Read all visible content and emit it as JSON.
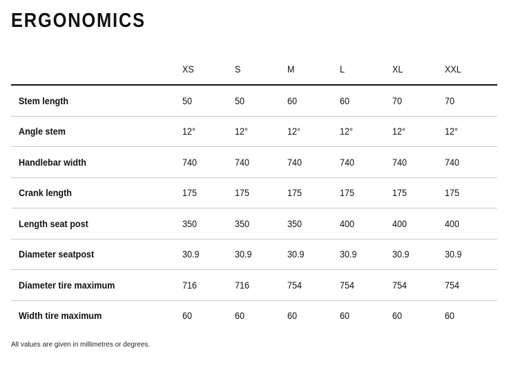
{
  "title": "ERGONOMICS",
  "table": {
    "columns": [
      "XS",
      "S",
      "M",
      "L",
      "XL",
      "XXL"
    ],
    "rows": [
      {
        "label": "Stem length",
        "values": [
          "50",
          "50",
          "60",
          "60",
          "70",
          "70"
        ]
      },
      {
        "label": "Angle stem",
        "values": [
          "12°",
          "12°",
          "12°",
          "12°",
          "12°",
          "12°"
        ]
      },
      {
        "label": "Handlebar width",
        "values": [
          "740",
          "740",
          "740",
          "740",
          "740",
          "740"
        ]
      },
      {
        "label": "Crank length",
        "values": [
          "175",
          "175",
          "175",
          "175",
          "175",
          "175"
        ]
      },
      {
        "label": "Length seat post",
        "values": [
          "350",
          "350",
          "350",
          "400",
          "400",
          "400"
        ]
      },
      {
        "label": "Diameter seatpost",
        "values": [
          "30.9",
          "30.9",
          "30.9",
          "30.9",
          "30.9",
          "30.9"
        ]
      },
      {
        "label": "Diameter tire maximum",
        "values": [
          "716",
          "716",
          "754",
          "754",
          "754",
          "754"
        ]
      },
      {
        "label": "Width tire maximum",
        "values": [
          "60",
          "60",
          "60",
          "60",
          "60",
          "60"
        ]
      }
    ]
  },
  "footnote": "All values are given in millimetres or degrees."
}
